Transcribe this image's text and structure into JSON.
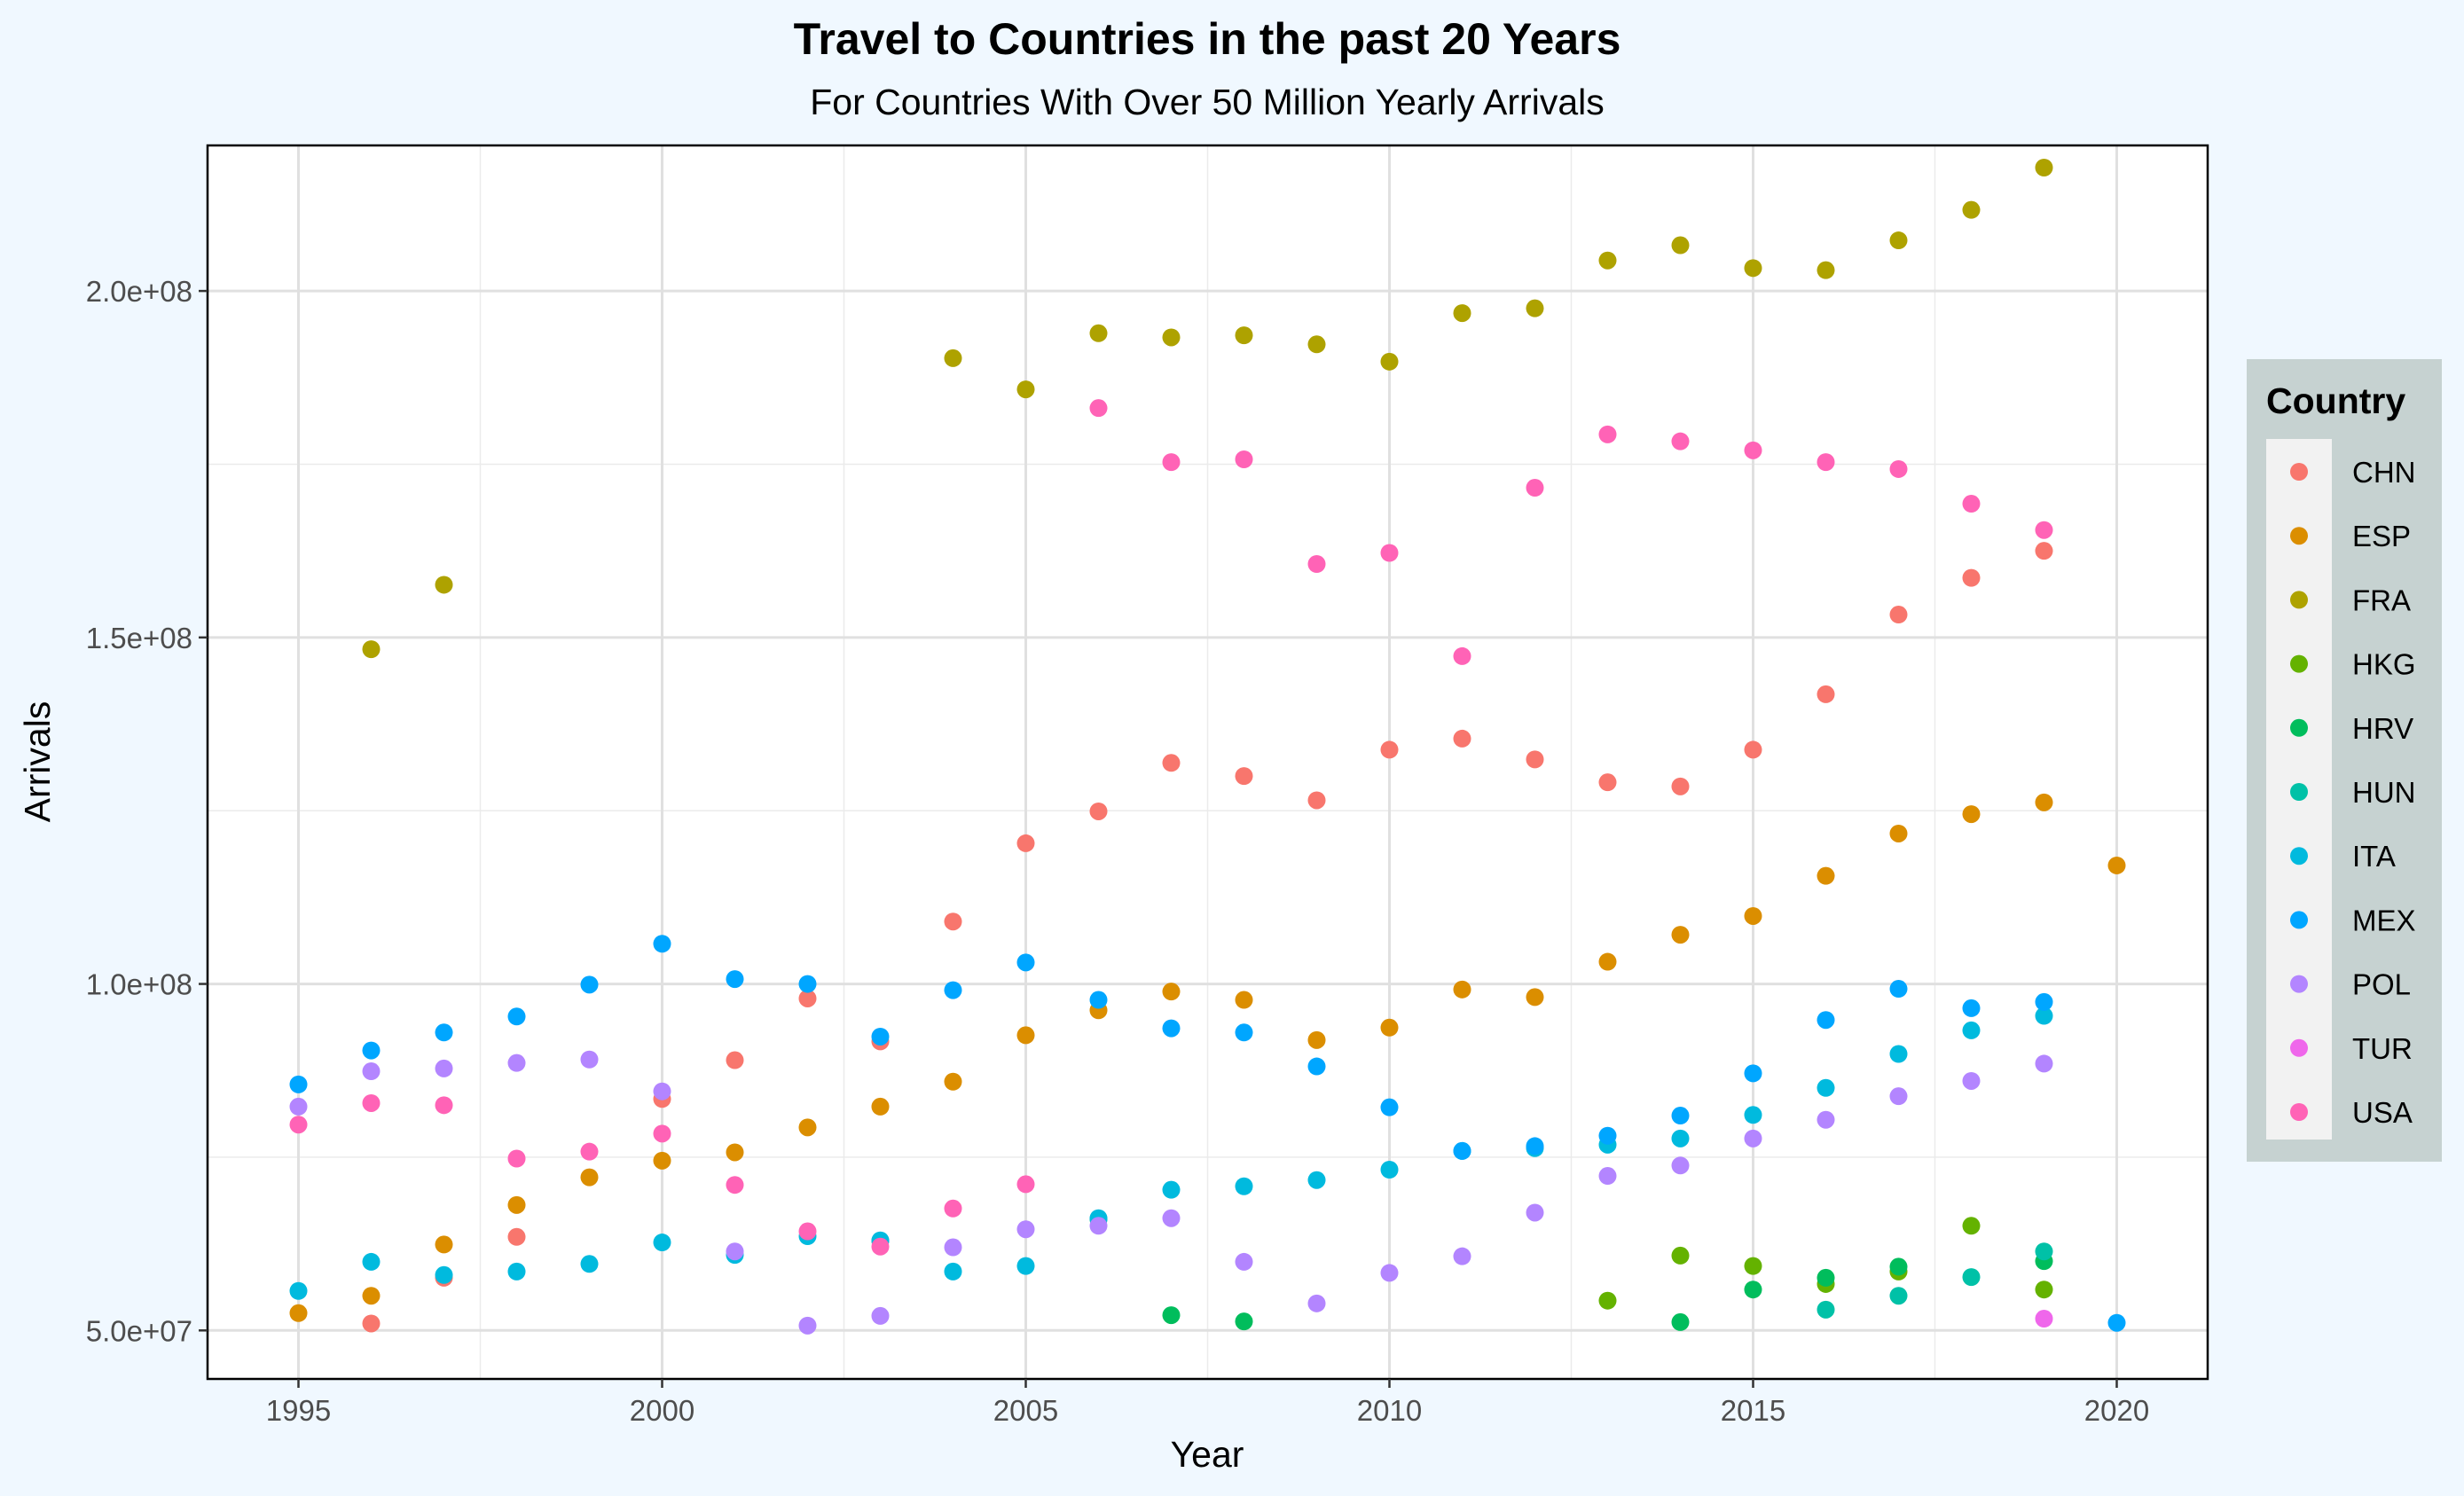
{
  "chart_data": {
    "type": "scatter",
    "title": "Travel to Countries in the past 20 Years",
    "subtitle": "For Countries With Over 50 Million Yearly Arrivals",
    "xlabel": "Year",
    "ylabel": "Arrivals",
    "xlim": [
      1993.75,
      2021.25
    ],
    "ylim": [
      43000000,
      221000000
    ],
    "x_ticks": [
      1995,
      2000,
      2005,
      2010,
      2015,
      2020
    ],
    "x_tick_labels": [
      "1995",
      "2000",
      "2005",
      "2010",
      "2015",
      "2020"
    ],
    "y_ticks": [
      50000000,
      100000000,
      150000000,
      200000000
    ],
    "y_tick_labels": [
      "5.0e+07",
      "1.0e+08",
      "1.5e+08",
      "2.0e+08"
    ],
    "grid": true,
    "legend_title": "Country",
    "legend_position": "right",
    "series": [
      {
        "name": "CHN",
        "color": "#F8766D",
        "points": [
          [
            1996,
            51000000
          ],
          [
            1997,
            57600000
          ],
          [
            1998,
            63500000
          ],
          [
            2000,
            83400000
          ],
          [
            2001,
            89000000
          ],
          [
            2002,
            97900000
          ],
          [
            2003,
            91700000
          ],
          [
            2004,
            109000000
          ],
          [
            2005,
            120300000
          ],
          [
            2006,
            124900000
          ],
          [
            2007,
            131900000
          ],
          [
            2008,
            130000000
          ],
          [
            2009,
            126500000
          ],
          [
            2010,
            133800000
          ],
          [
            2011,
            135400000
          ],
          [
            2012,
            132400000
          ],
          [
            2013,
            129100000
          ],
          [
            2014,
            128500000
          ],
          [
            2015,
            133800000
          ],
          [
            2016,
            141800000
          ],
          [
            2017,
            153300000
          ],
          [
            2018,
            158600000
          ],
          [
            2019,
            162500000
          ]
        ]
      },
      {
        "name": "ESP",
        "color": "#DB8E00",
        "points": [
          [
            1995,
            52500000
          ],
          [
            1996,
            55000000
          ],
          [
            1997,
            62400000
          ],
          [
            1998,
            68100000
          ],
          [
            1999,
            72100000
          ],
          [
            2000,
            74500000
          ],
          [
            2001,
            75700000
          ],
          [
            2002,
            79300000
          ],
          [
            2003,
            82300000
          ],
          [
            2004,
            85900000
          ],
          [
            2005,
            92600000
          ],
          [
            2006,
            96200000
          ],
          [
            2007,
            98900000
          ],
          [
            2008,
            97700000
          ],
          [
            2009,
            91900000
          ],
          [
            2010,
            93700000
          ],
          [
            2011,
            99200000
          ],
          [
            2012,
            98100000
          ],
          [
            2013,
            103200000
          ],
          [
            2014,
            107100000
          ],
          [
            2015,
            109800000
          ],
          [
            2016,
            115600000
          ],
          [
            2017,
            121700000
          ],
          [
            2018,
            124500000
          ],
          [
            2019,
            126200000
          ],
          [
            2020,
            117100000
          ]
        ]
      },
      {
        "name": "FRA",
        "color": "#AEA200",
        "points": [
          [
            1996,
            148300000
          ],
          [
            1997,
            157600000
          ],
          [
            2004,
            190300000
          ],
          [
            2005,
            185800000
          ],
          [
            2006,
            193900000
          ],
          [
            2007,
            193300000
          ],
          [
            2008,
            193600000
          ],
          [
            2009,
            192300000
          ],
          [
            2010,
            189800000
          ],
          [
            2011,
            196800000
          ],
          [
            2012,
            197500000
          ],
          [
            2013,
            204400000
          ],
          [
            2014,
            206600000
          ],
          [
            2015,
            203300000
          ],
          [
            2016,
            203000000
          ],
          [
            2017,
            207300000
          ],
          [
            2018,
            211700000
          ],
          [
            2019,
            217800000
          ]
        ]
      },
      {
        "name": "HKG",
        "color": "#64B200",
        "points": [
          [
            2013,
            54300000
          ],
          [
            2014,
            60800000
          ],
          [
            2015,
            59300000
          ],
          [
            2016,
            56700000
          ],
          [
            2017,
            58500000
          ],
          [
            2018,
            65100000
          ],
          [
            2019,
            55900000
          ]
        ]
      },
      {
        "name": "HRV",
        "color": "#00BD5C",
        "points": [
          [
            2007,
            52200000
          ],
          [
            2008,
            51300000
          ],
          [
            2014,
            51200000
          ],
          [
            2015,
            55900000
          ],
          [
            2016,
            57600000
          ],
          [
            2017,
            59200000
          ],
          [
            2019,
            60000000
          ]
        ]
      },
      {
        "name": "HUN",
        "color": "#00C1A7",
        "points": [
          [
            2003,
            62900000
          ],
          [
            2006,
            66000000
          ],
          [
            2016,
            53000000
          ],
          [
            2017,
            55000000
          ],
          [
            2018,
            57700000
          ],
          [
            2019,
            61400000
          ]
        ]
      },
      {
        "name": "ITA",
        "color": "#00BADE",
        "points": [
          [
            1995,
            55700000
          ],
          [
            1996,
            59900000
          ],
          [
            1997,
            58000000
          ],
          [
            1998,
            58500000
          ],
          [
            1999,
            59600000
          ],
          [
            2000,
            62700000
          ],
          [
            2001,
            60900000
          ],
          [
            2002,
            63600000
          ],
          [
            2003,
            63000000
          ],
          [
            2004,
            58500000
          ],
          [
            2005,
            59300000
          ],
          [
            2006,
            66200000
          ],
          [
            2007,
            70300000
          ],
          [
            2008,
            70800000
          ],
          [
            2009,
            71700000
          ],
          [
            2010,
            73200000
          ],
          [
            2011,
            75900000
          ],
          [
            2012,
            76300000
          ],
          [
            2013,
            76800000
          ],
          [
            2014,
            77700000
          ],
          [
            2015,
            81100000
          ],
          [
            2016,
            85000000
          ],
          [
            2017,
            89900000
          ],
          [
            2018,
            93300000
          ],
          [
            2019,
            95400000
          ]
        ]
      },
      {
        "name": "MEX",
        "color": "#00A6FF",
        "points": [
          [
            1995,
            85500000
          ],
          [
            1996,
            90400000
          ],
          [
            1997,
            93000000
          ],
          [
            1998,
            95300000
          ],
          [
            1999,
            99900000
          ],
          [
            2000,
            105800000
          ],
          [
            2001,
            100700000
          ],
          [
            2002,
            100000000
          ],
          [
            2003,
            92400000
          ],
          [
            2004,
            99100000
          ],
          [
            2005,
            103100000
          ],
          [
            2006,
            97700000
          ],
          [
            2007,
            93600000
          ],
          [
            2008,
            93000000
          ],
          [
            2009,
            88100000
          ],
          [
            2010,
            82200000
          ],
          [
            2011,
            75900000
          ],
          [
            2012,
            76600000
          ],
          [
            2013,
            78100000
          ],
          [
            2014,
            81000000
          ],
          [
            2015,
            87100000
          ],
          [
            2016,
            94800000
          ],
          [
            2017,
            99300000
          ],
          [
            2018,
            96500000
          ],
          [
            2019,
            97400000
          ],
          [
            2020,
            51100000
          ]
        ]
      },
      {
        "name": "POL",
        "color": "#B385FF",
        "points": [
          [
            1995,
            82300000
          ],
          [
            1996,
            87400000
          ],
          [
            1997,
            87800000
          ],
          [
            1998,
            88600000
          ],
          [
            1999,
            89100000
          ],
          [
            2000,
            84500000
          ],
          [
            2001,
            61400000
          ],
          [
            2002,
            50700000
          ],
          [
            2003,
            52100000
          ],
          [
            2004,
            62000000
          ],
          [
            2005,
            64600000
          ],
          [
            2006,
            65100000
          ],
          [
            2007,
            66200000
          ],
          [
            2008,
            59900000
          ],
          [
            2009,
            53900000
          ],
          [
            2010,
            58300000
          ],
          [
            2011,
            60700000
          ],
          [
            2012,
            67000000
          ],
          [
            2013,
            72300000
          ],
          [
            2014,
            73800000
          ],
          [
            2015,
            77700000
          ],
          [
            2016,
            80400000
          ],
          [
            2017,
            83800000
          ],
          [
            2018,
            86000000
          ],
          [
            2019,
            88500000
          ]
        ]
      },
      {
        "name": "TUR",
        "color": "#EF67EB",
        "points": [
          [
            2019,
            51700000
          ]
        ]
      },
      {
        "name": "USA",
        "color": "#FF63B6",
        "points": [
          [
            1995,
            79700000
          ],
          [
            1996,
            82800000
          ],
          [
            1997,
            82500000
          ],
          [
            1998,
            74800000
          ],
          [
            1999,
            75800000
          ],
          [
            2000,
            78400000
          ],
          [
            2001,
            71000000
          ],
          [
            2002,
            64300000
          ],
          [
            2003,
            62100000
          ],
          [
            2004,
            67600000
          ],
          [
            2005,
            71100000
          ],
          [
            2006,
            183100000
          ],
          [
            2007,
            175300000
          ],
          [
            2008,
            175700000
          ],
          [
            2009,
            160600000
          ],
          [
            2010,
            162200000
          ],
          [
            2011,
            147300000
          ],
          [
            2012,
            171600000
          ],
          [
            2013,
            179300000
          ],
          [
            2014,
            178300000
          ],
          [
            2015,
            177000000
          ],
          [
            2016,
            175300000
          ],
          [
            2017,
            174300000
          ],
          [
            2018,
            169300000
          ],
          [
            2019,
            165500000
          ]
        ]
      }
    ]
  }
}
